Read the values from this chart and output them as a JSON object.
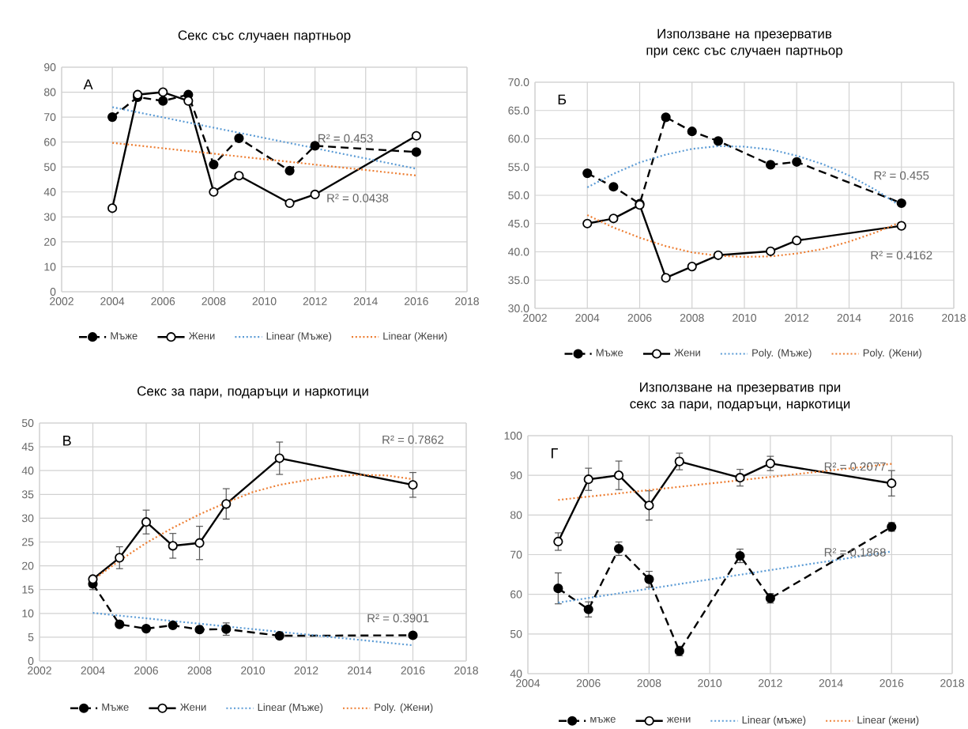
{
  "chart_data": [
    {
      "type": "line",
      "title": "Секс със случаен партньор",
      "annotations": [
        "А",
        "R² = 0.453",
        "R² = 0.0438"
      ],
      "x": [
        2004,
        2005,
        2006,
        2007,
        2008,
        2009,
        2011,
        2012,
        2016
      ],
      "xlim": [
        2002,
        2018
      ],
      "xticks": [
        2002,
        2004,
        2006,
        2008,
        2010,
        2012,
        2014,
        2016,
        2018
      ],
      "ylim": [
        0,
        90
      ],
      "yticks": [
        0,
        10,
        20,
        30,
        40,
        50,
        60,
        70,
        80,
        90
      ],
      "grid": true,
      "legend": "bottom",
      "series": [
        {
          "name": "Мъже",
          "color": "#000000",
          "marker": "circle",
          "line_style": "dashed",
          "values": [
            70,
            78,
            76.5,
            79,
            51,
            61.5,
            48.5,
            58.5,
            56
          ]
        },
        {
          "name": "Жени",
          "color": "#000000",
          "marker": "circle",
          "line_style": "solid",
          "values": [
            33.5,
            79,
            80,
            76.5,
            40,
            46.5,
            35.5,
            39,
            62.5
          ]
        },
        {
          "name": "Linear (Мъже)",
          "color": "#5b9bd5",
          "marker": "none",
          "line_style": "dotted",
          "x": [
            2004,
            2016
          ],
          "values": [
            74.0,
            49.3
          ]
        },
        {
          "name": "Linear (Жени)",
          "color": "#ed7d31",
          "marker": "none",
          "line_style": "dotted",
          "x": [
            2004,
            2016
          ],
          "values": [
            59.7,
            46.6
          ]
        }
      ]
    },
    {
      "type": "line",
      "title": "Използване на презерватив при секс със случаен партньор",
      "annotations": [
        "Б",
        "R² = 0.455",
        "R² = 0.4162"
      ],
      "x": [
        2004,
        2005,
        2006,
        2007,
        2008,
        2009,
        2011,
        2012,
        2016
      ],
      "xlim": [
        2002,
        2018
      ],
      "xticks": [
        2002,
        2004,
        2006,
        2008,
        2010,
        2012,
        2014,
        2016,
        2018
      ],
      "ylim": [
        30,
        70
      ],
      "yticks": [
        {
          "value": 30,
          "label": "30.0"
        },
        {
          "value": 35,
          "label": "35.0"
        },
        {
          "value": 40,
          "label": "40.0"
        },
        {
          "value": 45,
          "label": "45.0"
        },
        {
          "value": 50,
          "label": "50.0"
        },
        {
          "value": 55,
          "label": "55.0"
        },
        {
          "value": 60,
          "label": "60.0"
        },
        {
          "value": 65,
          "label": "65.0"
        },
        {
          "value": 70,
          "label": "70.0"
        }
      ],
      "grid": true,
      "legend": "bottom",
      "series": [
        {
          "name": "Мъже",
          "color": "#000000",
          "marker": "circle",
          "line_style": "dashed",
          "values": [
            53.9,
            51.5,
            48.5,
            63.8,
            61.3,
            59.6,
            55.4,
            55.9,
            48.6
          ]
        },
        {
          "name": "Жени",
          "color": "#000000",
          "marker": "circle",
          "line_style": "solid",
          "values": [
            45.0,
            45.9,
            48.3,
            35.4,
            37.4,
            39.4,
            40.1,
            42.0,
            44.6
          ]
        },
        {
          "name": "Poly. (Мъже)",
          "color": "#5b9bd5",
          "marker": "none",
          "line_style": "dotted",
          "x": [
            2004,
            2005,
            2006,
            2007,
            2008,
            2009,
            2010,
            2011,
            2012,
            2013,
            2014,
            2015,
            2016
          ],
          "values": [
            51.4,
            53.8,
            55.8,
            57.2,
            58.2,
            58.7,
            58.6,
            58.1,
            57.0,
            55.5,
            53.5,
            51.0,
            48.0
          ]
        },
        {
          "name": "Poly. (Жени)",
          "color": "#ed7d31",
          "marker": "none",
          "line_style": "dotted",
          "x": [
            2004,
            2005,
            2006,
            2007,
            2008,
            2009,
            2010,
            2011,
            2012,
            2013,
            2014,
            2015,
            2016
          ],
          "values": [
            46.5,
            44.3,
            42.5,
            41.0,
            39.9,
            39.3,
            39.1,
            39.2,
            39.7,
            40.5,
            41.8,
            43.4,
            45.3
          ]
        }
      ]
    },
    {
      "type": "line",
      "title": "Секс за пари, подаръци и наркотици",
      "annotations": [
        "В",
        "R² = 0.7862",
        "R² = 0.3901"
      ],
      "x": [
        2004,
        2005,
        2006,
        2007,
        2008,
        2009,
        2011,
        2016
      ],
      "xlim": [
        2002,
        2018
      ],
      "xticks": [
        2002,
        2004,
        2006,
        2008,
        2010,
        2012,
        2014,
        2016,
        2018
      ],
      "ylim": [
        0,
        50
      ],
      "yticks": [
        0,
        5,
        10,
        15,
        20,
        25,
        30,
        35,
        40,
        45,
        50
      ],
      "grid": true,
      "legend": "bottom",
      "series": [
        {
          "name": "Мъже",
          "color": "#000000",
          "marker": "circle",
          "line_style": "dashed",
          "values": [
            16.2,
            7.7,
            6.8,
            7.5,
            6.6,
            6.7,
            5.3,
            5.4
          ],
          "errors": [
            1.2,
            null,
            null,
            null,
            null,
            1.3,
            null,
            null
          ]
        },
        {
          "name": "Жени",
          "color": "#000000",
          "marker": "circle",
          "line_style": "solid",
          "values": [
            17.2,
            21.7,
            29.2,
            24.2,
            24.8,
            33.0,
            42.6,
            37.0
          ],
          "errors": [
            null,
            2.3,
            2.5,
            2.6,
            3.5,
            3.2,
            3.4,
            2.6
          ]
        },
        {
          "name": "Linear (Мъже)",
          "color": "#5b9bd5",
          "marker": "none",
          "line_style": "dotted",
          "x": [
            2004,
            2016
          ],
          "values": [
            10.1,
            3.3
          ]
        },
        {
          "name": "Poly. (Жени)",
          "color": "#ed7d31",
          "marker": "none",
          "line_style": "dotted",
          "x": [
            2004,
            2005,
            2006,
            2007,
            2008,
            2009,
            2010,
            2011,
            2012,
            2013,
            2014,
            2015,
            2016
          ],
          "values": [
            17.0,
            21.1,
            24.8,
            28.0,
            30.8,
            33.3,
            35.5,
            37.0,
            38.0,
            38.8,
            39.1,
            39.0,
            38.2
          ]
        }
      ]
    },
    {
      "type": "line",
      "title": "Използване на презерватив при секс за пари, подаръци, наркотици",
      "annotations": [
        "Г",
        "R² = 0.2077",
        "R² = 0.1868"
      ],
      "x": [
        2005,
        2006,
        2007,
        2008,
        2009,
        2011,
        2012,
        2016
      ],
      "xlim": [
        2004,
        2018
      ],
      "xticks": [
        2004,
        2006,
        2008,
        2010,
        2012,
        2014,
        2016,
        2018
      ],
      "ylim": [
        40,
        100
      ],
      "yticks": [
        40,
        50,
        60,
        70,
        80,
        90,
        100
      ],
      "grid": true,
      "legend": "bottom",
      "series": [
        {
          "name": "мъже",
          "color": "#000000",
          "marker": "circle",
          "line_style": "dashed",
          "values": [
            61.5,
            56.2,
            71.5,
            63.8,
            45.7,
            69.7,
            59.0,
            77.0
          ],
          "errors": [
            3.9,
            1.9,
            1.7,
            2.0,
            1.2,
            1.7,
            1.2,
            1.1
          ]
        },
        {
          "name": "жени",
          "color": "#000000",
          "marker": "circle",
          "line_style": "solid",
          "values": [
            73.3,
            89.0,
            90.0,
            82.4,
            93.5,
            89.4,
            93.0,
            88.0
          ],
          "errors": [
            2.2,
            2.8,
            3.6,
            3.7,
            2.1,
            2.1,
            1.8,
            3.2
          ]
        },
        {
          "name": "Linear (мъже)",
          "color": "#5b9bd5",
          "marker": "none",
          "line_style": "dotted",
          "x": [
            2005,
            2016
          ],
          "values": [
            57.9,
            70.8
          ]
        },
        {
          "name": "Linear (жени)",
          "color": "#ed7d31",
          "marker": "none",
          "line_style": "dotted",
          "x": [
            2005,
            2016
          ],
          "values": [
            83.8,
            92.9
          ]
        }
      ]
    }
  ]
}
